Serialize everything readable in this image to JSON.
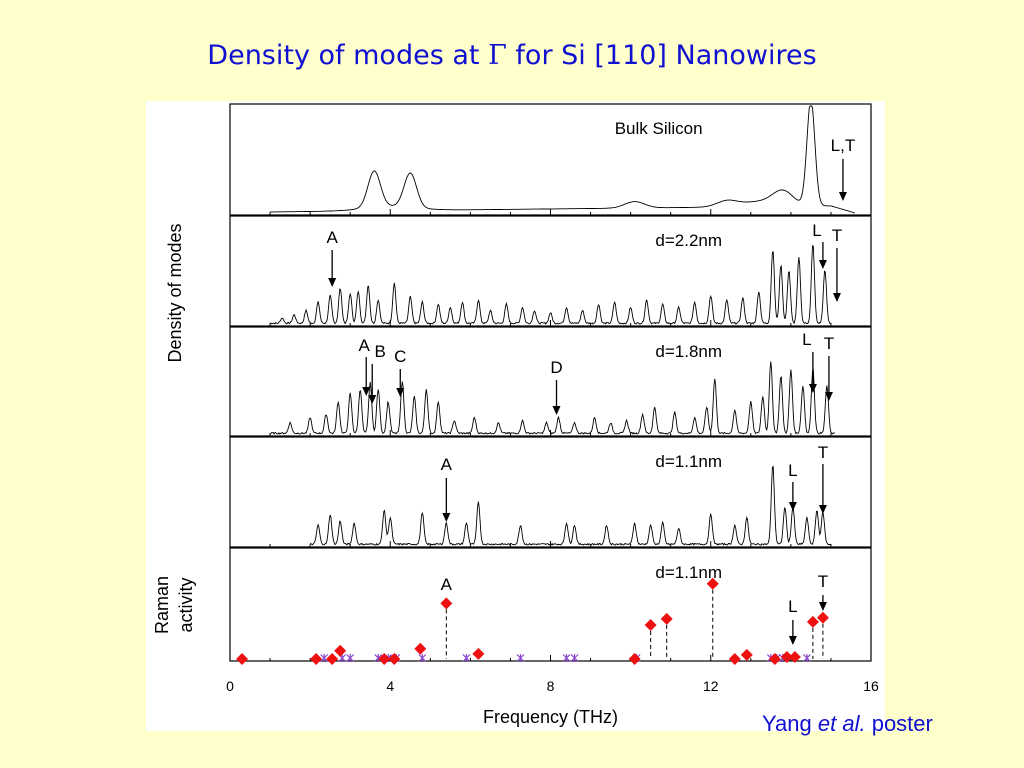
{
  "slide": {
    "title_before": "Density of modes at",
    "title_symbol": "Γ",
    "title_after": "for Si [110] Nanowires",
    "credit_name": "Yang",
    "credit_etal": "et al.",
    "credit_after": "poster",
    "text_color": "#1010d0",
    "background": "#ffffcc"
  },
  "chart_data": {
    "type": "line",
    "xlabel": "Frequency (THz)",
    "ylabel_dos": "Density of modes",
    "ylabel_raman": [
      "Raman",
      "activity"
    ],
    "xlim": [
      0,
      16
    ],
    "xticks": [
      0,
      4,
      8,
      12,
      16
    ],
    "grid": false,
    "panels": [
      {
        "label": "Bulk Silicon",
        "line_start": 1.0,
        "line_end": 15.6,
        "features": [
          {
            "x": 3.6,
            "y": 0.34
          },
          {
            "x": 4.5,
            "y": 0.32
          },
          {
            "x": 10.1,
            "y": 0.06
          },
          {
            "x": 12.4,
            "y": 0.05
          },
          {
            "x": 13.8,
            "y": 0.12
          },
          {
            "x": 14.5,
            "y": 0.99
          }
        ],
        "arrows": [
          {
            "label": "L,T",
            "x": 15.3
          }
        ]
      },
      {
        "label": "d=2.2nm",
        "line_start": 1.0,
        "line_end": 15.0,
        "peaks": [
          [
            1.3,
            0.05
          ],
          [
            1.6,
            0.08
          ],
          [
            1.9,
            0.12
          ],
          [
            2.2,
            0.2
          ],
          [
            2.5,
            0.26
          ],
          [
            2.75,
            0.33
          ],
          [
            3.0,
            0.28
          ],
          [
            3.2,
            0.3
          ],
          [
            3.45,
            0.36
          ],
          [
            3.7,
            0.22
          ],
          [
            4.1,
            0.38
          ],
          [
            4.5,
            0.25
          ],
          [
            4.8,
            0.2
          ],
          [
            5.2,
            0.18
          ],
          [
            5.5,
            0.15
          ],
          [
            5.8,
            0.2
          ],
          [
            6.2,
            0.22
          ],
          [
            6.5,
            0.12
          ],
          [
            6.9,
            0.18
          ],
          [
            7.3,
            0.15
          ],
          [
            7.6,
            0.12
          ],
          [
            8.0,
            0.1
          ],
          [
            8.4,
            0.15
          ],
          [
            8.8,
            0.12
          ],
          [
            9.2,
            0.18
          ],
          [
            9.6,
            0.2
          ],
          [
            10.0,
            0.15
          ],
          [
            10.4,
            0.22
          ],
          [
            10.8,
            0.18
          ],
          [
            11.2,
            0.15
          ],
          [
            11.6,
            0.2
          ],
          [
            12.0,
            0.26
          ],
          [
            12.4,
            0.22
          ],
          [
            12.8,
            0.24
          ],
          [
            13.2,
            0.3
          ],
          [
            13.55,
            0.7
          ],
          [
            13.75,
            0.55
          ],
          [
            13.95,
            0.5
          ],
          [
            14.2,
            0.62
          ],
          [
            14.55,
            0.75
          ],
          [
            14.85,
            0.5
          ]
        ],
        "arrows": [
          {
            "label": "A",
            "x": 2.55
          },
          {
            "label": "L",
            "x": 14.8
          },
          {
            "label": "T",
            "x": 15.15
          }
        ]
      },
      {
        "label": "d=1.8nm",
        "line_start": 1.0,
        "line_end": 15.1,
        "peaks": [
          [
            1.5,
            0.1
          ],
          [
            2.0,
            0.15
          ],
          [
            2.4,
            0.18
          ],
          [
            2.7,
            0.3
          ],
          [
            3.0,
            0.38
          ],
          [
            3.25,
            0.42
          ],
          [
            3.5,
            0.48
          ],
          [
            3.7,
            0.42
          ],
          [
            3.95,
            0.3
          ],
          [
            4.3,
            0.5
          ],
          [
            4.6,
            0.35
          ],
          [
            4.9,
            0.42
          ],
          [
            5.2,
            0.3
          ],
          [
            5.6,
            0.12
          ],
          [
            6.1,
            0.15
          ],
          [
            6.7,
            0.1
          ],
          [
            7.3,
            0.12
          ],
          [
            7.9,
            0.1
          ],
          [
            8.2,
            0.15
          ],
          [
            8.6,
            0.1
          ],
          [
            9.1,
            0.15
          ],
          [
            9.5,
            0.1
          ],
          [
            9.9,
            0.12
          ],
          [
            10.3,
            0.18
          ],
          [
            10.6,
            0.25
          ],
          [
            11.1,
            0.2
          ],
          [
            11.6,
            0.15
          ],
          [
            11.9,
            0.25
          ],
          [
            12.1,
            0.52
          ],
          [
            12.6,
            0.22
          ],
          [
            13.0,
            0.3
          ],
          [
            13.3,
            0.35
          ],
          [
            13.5,
            0.68
          ],
          [
            13.75,
            0.55
          ],
          [
            14.0,
            0.6
          ],
          [
            14.3,
            0.45
          ],
          [
            14.55,
            0.62
          ],
          [
            14.9,
            0.45
          ]
        ],
        "arrows": [
          {
            "label": "A",
            "x": 3.4
          },
          {
            "label": "B",
            "x": 3.55
          },
          {
            "label": "C",
            "x": 4.25
          },
          {
            "label": "D",
            "x": 8.15
          },
          {
            "label": "L",
            "x": 14.55
          },
          {
            "label": "T",
            "x": 14.95
          }
        ]
      },
      {
        "label": "d=1.1nm",
        "line_start": 2.0,
        "line_end": 15.0,
        "peaks": [
          [
            2.2,
            0.18
          ],
          [
            2.5,
            0.28
          ],
          [
            2.75,
            0.22
          ],
          [
            3.1,
            0.2
          ],
          [
            3.85,
            0.32
          ],
          [
            4.0,
            0.25
          ],
          [
            4.8,
            0.3
          ],
          [
            5.4,
            0.2
          ],
          [
            5.9,
            0.2
          ],
          [
            6.2,
            0.4
          ],
          [
            7.25,
            0.18
          ],
          [
            8.4,
            0.2
          ],
          [
            8.6,
            0.18
          ],
          [
            9.4,
            0.18
          ],
          [
            10.1,
            0.2
          ],
          [
            10.5,
            0.18
          ],
          [
            10.8,
            0.2
          ],
          [
            11.2,
            0.15
          ],
          [
            12.0,
            0.28
          ],
          [
            12.6,
            0.18
          ],
          [
            12.9,
            0.25
          ],
          [
            13.55,
            0.75
          ],
          [
            13.85,
            0.35
          ],
          [
            14.05,
            0.35
          ],
          [
            14.4,
            0.25
          ],
          [
            14.65,
            0.32
          ],
          [
            14.8,
            0.3
          ]
        ],
        "arrows": [
          {
            "label": "A",
            "x": 5.4
          },
          {
            "label": "L",
            "x": 14.05
          },
          {
            "label": "T",
            "x": 14.8
          }
        ]
      },
      {
        "label": "d=1.1nm",
        "type": "scatter",
        "raman": [
          {
            "x": 0.3,
            "y": 0.0
          },
          {
            "x": 2.15,
            "y": 0.0
          },
          {
            "x": 2.55,
            "y": 0.0
          },
          {
            "x": 2.75,
            "y": 0.08
          },
          {
            "x": 3.85,
            "y": 0.0
          },
          {
            "x": 4.1,
            "y": 0.0
          },
          {
            "x": 4.75,
            "y": 0.1
          },
          {
            "x": 5.4,
            "y": 0.54
          },
          {
            "x": 6.2,
            "y": 0.05
          },
          {
            "x": 10.1,
            "y": 0.0
          },
          {
            "x": 10.5,
            "y": 0.33
          },
          {
            "x": 10.9,
            "y": 0.39
          },
          {
            "x": 12.05,
            "y": 0.73
          },
          {
            "x": 12.6,
            "y": 0.0
          },
          {
            "x": 12.9,
            "y": 0.04
          },
          {
            "x": 13.6,
            "y": 0.0
          },
          {
            "x": 13.9,
            "y": 0.02
          },
          {
            "x": 14.1,
            "y": 0.02
          },
          {
            "x": 14.55,
            "y": 0.36
          },
          {
            "x": 14.8,
            "y": 0.4
          }
        ],
        "dashed_at": [
          5.4,
          10.5,
          10.9,
          12.05,
          14.55,
          14.8
        ],
        "zero_modes": [
          2.35,
          2.8,
          3.0,
          3.7,
          3.95,
          4.15,
          4.8,
          5.9,
          7.25,
          8.4,
          8.6,
          10.15,
          13.5,
          13.65,
          13.8,
          14.4
        ],
        "marker_colors": {
          "active": "#ee1111",
          "inactive": "#8844cc"
        },
        "arrows": [
          {
            "label": "A",
            "x": 5.4,
            "text_only": true
          },
          {
            "label": "L",
            "x": 14.05
          },
          {
            "label": "T",
            "x": 14.8
          }
        ]
      }
    ]
  }
}
